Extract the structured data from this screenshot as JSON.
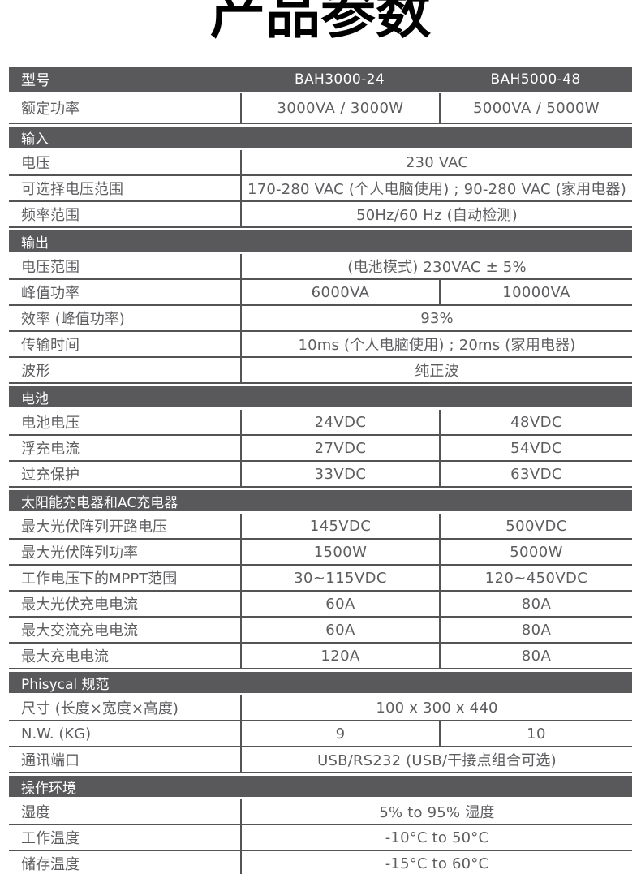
{
  "title": "产品参数",
  "colors": {
    "band_background": "#59595b",
    "body_text": "#5d5d60",
    "border": "#545456",
    "title_text": "#000000"
  },
  "table": {
    "header": {
      "label": "型号",
      "col1": "BAH3000-24",
      "col2": "BAH5000-48"
    },
    "rows": [
      {
        "type": "row",
        "tall": true,
        "label": "额定功率",
        "values": [
          "3000VA / 3000W",
          "5000VA / 5000W"
        ]
      },
      {
        "type": "section",
        "label": "输入"
      },
      {
        "type": "row",
        "label": "电压",
        "span": "230 VAC"
      },
      {
        "type": "row",
        "label": "可选择电压范围",
        "span": "170-280 VAC (个人电脑使用) ; 90-280 VAC (家用电器)"
      },
      {
        "type": "row",
        "label": "频率范围",
        "span": "50Hz/60 Hz (自动检测)"
      },
      {
        "type": "section",
        "label": "输出"
      },
      {
        "type": "row",
        "label": "电压范围",
        "span": "(电池模式)  230VAC ± 5%"
      },
      {
        "type": "row",
        "label": "峰值功率",
        "values": [
          "6000VA",
          "10000VA"
        ]
      },
      {
        "type": "row",
        "label": "效率 (峰值功率)",
        "span": "93%"
      },
      {
        "type": "row",
        "label": "传输时间",
        "span": "10ms (个人电脑使用) ; 20ms (家用电器)"
      },
      {
        "type": "row",
        "label": "波形",
        "span": "纯正波"
      },
      {
        "type": "section",
        "label": "电池"
      },
      {
        "type": "row",
        "label": "电池电压",
        "values": [
          "24VDC",
          "48VDC"
        ]
      },
      {
        "type": "row",
        "label": "浮充电流",
        "values": [
          "27VDC",
          "54VDC"
        ]
      },
      {
        "type": "row",
        "label": "过充保护",
        "values": [
          "33VDC",
          "63VDC"
        ]
      },
      {
        "type": "section",
        "label": "太阳能充电器和AC充电器"
      },
      {
        "type": "row",
        "label": "最大光伏阵列开路电压",
        "values": [
          "145VDC",
          "500VDC"
        ]
      },
      {
        "type": "row",
        "label": "最大光伏阵列功率",
        "values": [
          "1500W",
          "5000W"
        ]
      },
      {
        "type": "row",
        "label": "工作电压下的MPPT范围",
        "values": [
          "30~115VDC",
          "120~450VDC"
        ]
      },
      {
        "type": "row",
        "label": "最大光伏充电电流",
        "values": [
          "60A",
          "80A"
        ]
      },
      {
        "type": "row",
        "label": "最大交流充电电流",
        "values": [
          "60A",
          "80A"
        ]
      },
      {
        "type": "row",
        "label": "最大充电电流",
        "values": [
          "120A",
          "80A"
        ]
      },
      {
        "type": "section",
        "label": "Phisycal 规范"
      },
      {
        "type": "row",
        "label": "尺寸 (长度×宽度×高度)",
        "span": "100 x 300 x 440"
      },
      {
        "type": "row",
        "label": "N.W. (KG)",
        "values": [
          "9",
          "10"
        ]
      },
      {
        "type": "row",
        "label": "通讯端口",
        "span": "USB/RS232 (USB/干接点组合可选)"
      },
      {
        "type": "section",
        "label": "操作环境"
      },
      {
        "type": "row",
        "label": "湿度",
        "span": "5% to 95% 湿度"
      },
      {
        "type": "row",
        "label": "工作温度",
        "span": "-10°C to 50°C"
      },
      {
        "type": "row",
        "label": "储存温度",
        "span": "-15°C to 60°C"
      }
    ]
  }
}
